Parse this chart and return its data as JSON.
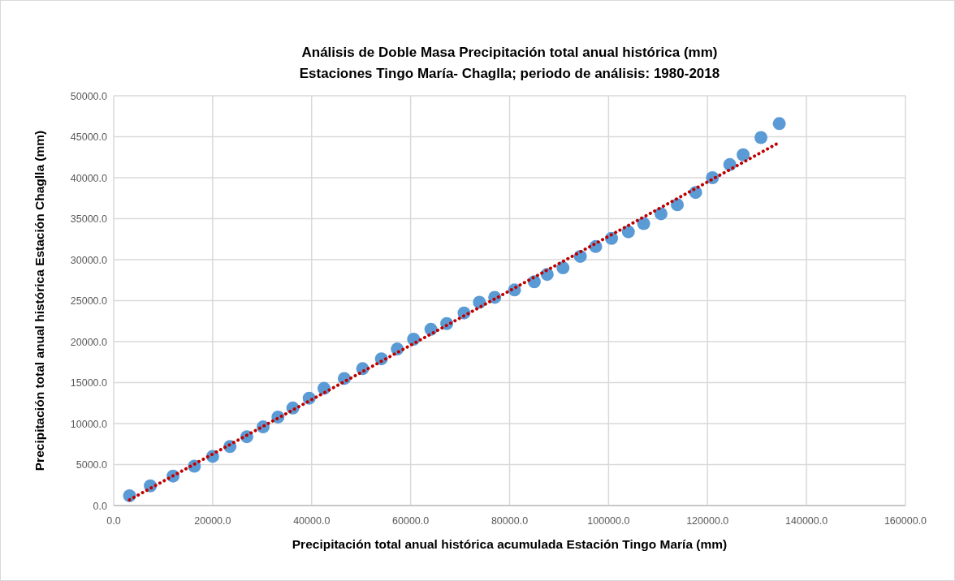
{
  "chart_data": {
    "type": "scatter",
    "title": "Análisis de Doble Masa Precipitación total anual histórica (mm)",
    "subtitle": "Estaciones Tingo María- Chaglla; periodo de análisis: 1980-2018",
    "xlabel": "Precipitación total anual histórica acumulada Estación Tingo María (mm)",
    "ylabel": "Precipitación total anual histórica Estación Chaglla (mm)",
    "xlim": [
      0,
      160000
    ],
    "ylim": [
      0,
      50000
    ],
    "xticks": [
      {
        "value": 0,
        "label": "0.0"
      },
      {
        "value": 20000,
        "label": "20000.0"
      },
      {
        "value": 40000,
        "label": "40000.0"
      },
      {
        "value": 60000,
        "label": "60000.0"
      },
      {
        "value": 80000,
        "label": "80000.0"
      },
      {
        "value": 100000,
        "label": "100000.0"
      },
      {
        "value": 120000,
        "label": "120000.0"
      },
      {
        "value": 140000,
        "label": "140000.0"
      },
      {
        "value": 160000,
        "label": "160000.0"
      }
    ],
    "yticks": [
      {
        "value": 0,
        "label": "0.0"
      },
      {
        "value": 5000,
        "label": "5000.0"
      },
      {
        "value": 10000,
        "label": "10000.0"
      },
      {
        "value": 15000,
        "label": "15000.0"
      },
      {
        "value": 20000,
        "label": "20000.0"
      },
      {
        "value": 25000,
        "label": "25000.0"
      },
      {
        "value": 30000,
        "label": "30000.0"
      },
      {
        "value": 35000,
        "label": "35000.0"
      },
      {
        "value": 40000,
        "label": "40000.0"
      },
      {
        "value": 45000,
        "label": "45000.0"
      },
      {
        "value": 50000,
        "label": "50000.0"
      }
    ],
    "grid": true,
    "series": [
      {
        "color": "#5b9bd5",
        "marker": "circle",
        "x": [
          3200,
          7400,
          12000,
          16300,
          20000,
          23500,
          26900,
          30200,
          33200,
          36200,
          39500,
          42500,
          46600,
          50300,
          54100,
          57300,
          60600,
          64100,
          67300,
          70800,
          73900,
          77000,
          81000,
          85000,
          87600,
          90800,
          94300,
          97400,
          100600,
          104000,
          107100,
          110600,
          113900,
          117600,
          121000,
          124500,
          127200,
          130800,
          134500
        ],
        "values": [
          1200,
          2400,
          3600,
          4800,
          6000,
          7200,
          8400,
          9600,
          10800,
          11900,
          13100,
          14300,
          15500,
          16700,
          17900,
          19100,
          20300,
          21500,
          22200,
          23500,
          24800,
          25400,
          26300,
          27300,
          28200,
          29000,
          30400,
          31600,
          32600,
          33400,
          34400,
          35600,
          36700,
          38200,
          40000,
          41600,
          42800,
          44900,
          46600
        ]
      },
      {
        "type": "line",
        "color": "#c00000",
        "marker": "none",
        "line_style": "dotted",
        "x": [
          3200,
          134500
        ],
        "values": [
          700,
          44300
        ]
      }
    ]
  }
}
